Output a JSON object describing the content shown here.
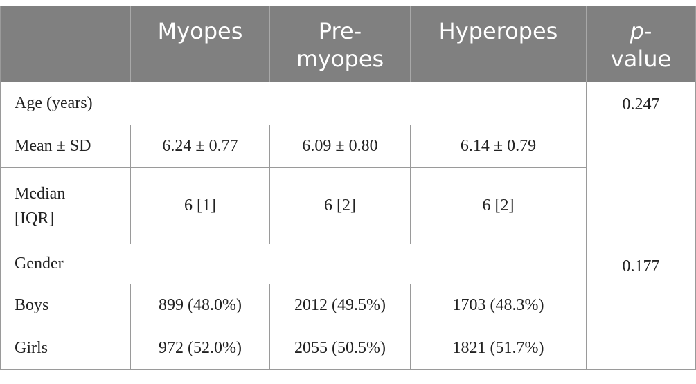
{
  "table": {
    "header": {
      "col0": "",
      "col1": "Myopes",
      "col2": "Pre-\nmyopes",
      "col2_line1": "Pre-",
      "col2_line2": "myopes",
      "col3": "Hyperopes",
      "col4_line1_italic": "p",
      "col4_line1_rest": "-",
      "col4_line2": "value"
    },
    "sections": {
      "age": {
        "label": "Age (years)",
        "p_value": "0.247",
        "rows": {
          "mean": {
            "label": "Mean ± SD",
            "myopes": "6.24 ± 0.77",
            "premyopes": "6.09 ± 0.80",
            "hyperopes": "6.14 ± 0.79"
          },
          "median": {
            "label_line1": "Median",
            "label_line2": "[IQR]",
            "myopes": "6 [1]",
            "premyopes": "6 [2]",
            "hyperopes": "6 [2]"
          }
        }
      },
      "gender": {
        "label": "Gender",
        "p_value": "0.177",
        "rows": {
          "boys": {
            "label": "Boys",
            "myopes": "899 (48.0%)",
            "premyopes": "2012 (49.5%)",
            "hyperopes": "1703 (48.3%)"
          },
          "girls": {
            "label": "Girls",
            "myopes": "972 (52.0%)",
            "premyopes": "2055 (50.5%)",
            "hyperopes": "1821 (51.7%)"
          }
        }
      }
    }
  },
  "colors": {
    "header_bg": "#808080",
    "header_text": "#ffffff",
    "border": "#9a9a9a",
    "body_text": "#222222"
  }
}
